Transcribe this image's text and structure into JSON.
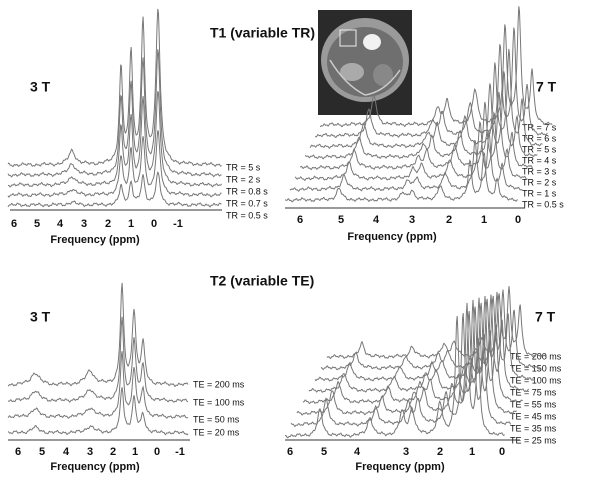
{
  "sections": [
    {
      "title": "T1 (variable TR)"
    },
    {
      "title": "T2 (variable TE)"
    }
  ],
  "panels": [
    {
      "field": "3 T",
      "axis_label": "Frequency (ppm)",
      "ticks": [
        "6",
        "5",
        "4",
        "3",
        "2",
        "1",
        "0",
        "-1"
      ],
      "traces": [
        "TR = 5 s",
        "TR = 2 s",
        "TR = 0.8 s",
        "TR = 0.7 s",
        "TR = 0.5 s"
      ]
    },
    {
      "field": "7 T",
      "axis_label": "Frequency (ppm)",
      "ticks": [
        "6",
        "5",
        "4",
        "3",
        "2",
        "1",
        "0"
      ],
      "traces": [
        "TR = 7 s",
        "TR = 6 s",
        "TR = 5 s",
        "TR = 4 s",
        "TR = 3 s",
        "TR = 2 s",
        "TR = 1 s",
        "TR = 0.5 s"
      ]
    },
    {
      "field": "3 T",
      "axis_label": "Frequency (ppm)",
      "ticks": [
        "6",
        "5",
        "4",
        "3",
        "2",
        "1",
        "0",
        "-1"
      ],
      "traces": [
        "TE = 200 ms",
        "TE = 100 ms",
        "TE = 50 ms",
        "TE = 20 ms"
      ]
    },
    {
      "field": "7 T",
      "axis_label": "Frequency (ppm)",
      "ticks": [
        "6",
        "5",
        "4",
        "3",
        "2",
        "1",
        "0"
      ],
      "traces": [
        "TE = 200 ms",
        "TE = 150 ms",
        "TE = 100 ms",
        "TE = 75 ms",
        "TE = 55 ms",
        "TE = 45 ms",
        "TE = 35 ms",
        "TE = 25 ms"
      ]
    }
  ]
}
